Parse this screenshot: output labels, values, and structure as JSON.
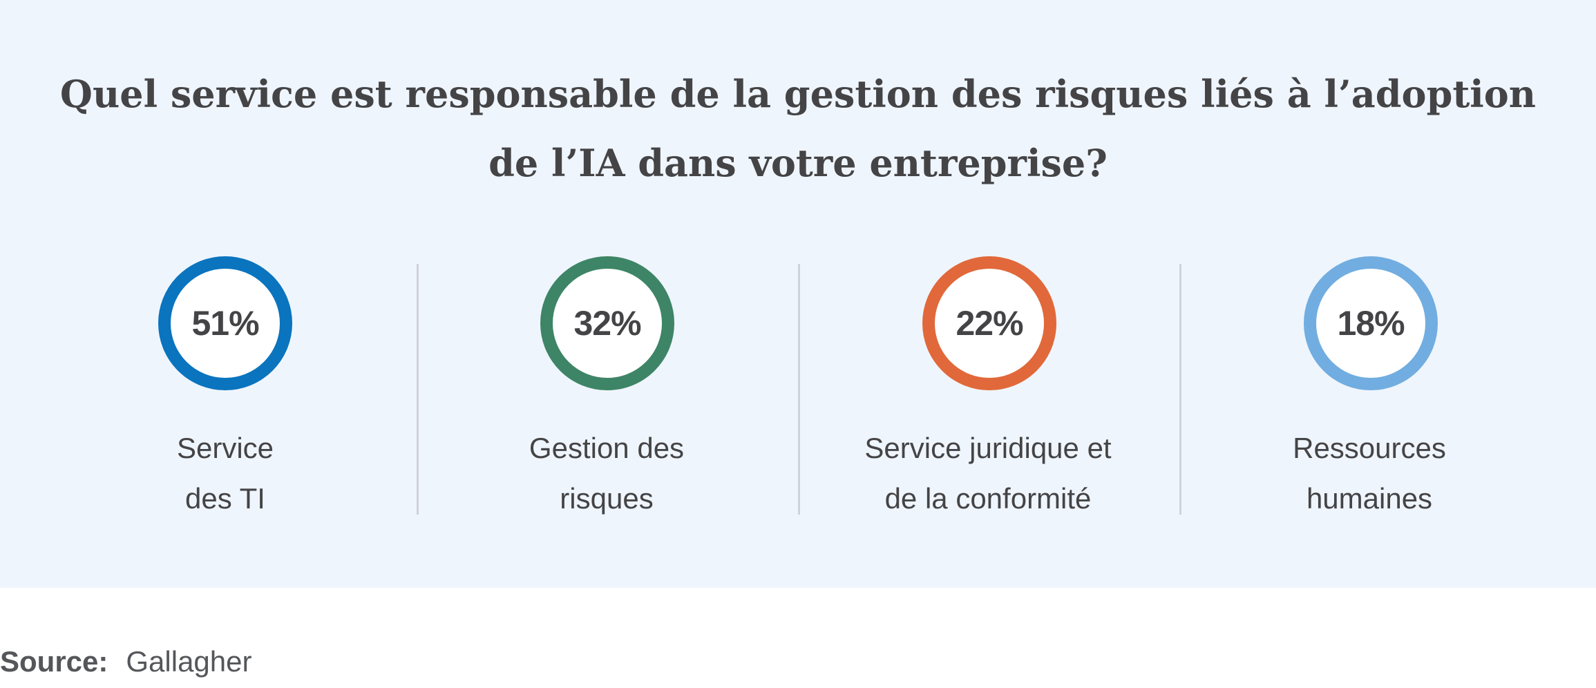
{
  "chart_data": {
    "type": "table",
    "title": "Quel service est responsable de la gestion des risques liés à l’adoption de l’IA dans votre entreprise?",
    "categories": [
      "Service des TI",
      "Gestion des risques",
      "Service juridique et de la conformité",
      "Ressources humaines"
    ],
    "values": [
      51,
      32,
      22,
      18
    ],
    "unit": "%",
    "items": [
      {
        "value": "51%",
        "label_lines": [
          "Service",
          "des TI"
        ],
        "color": "#0a74be"
      },
      {
        "value": "32%",
        "label_lines": [
          "Gestion des",
          "risques"
        ],
        "color": "#3d8566"
      },
      {
        "value": "22%",
        "label_lines": [
          "Service juridique et",
          "de la conformité"
        ],
        "color": "#e1683a"
      },
      {
        "value": "18%",
        "label_lines": [
          "Ressources",
          "humaines"
        ],
        "color": "#71ade0"
      }
    ]
  },
  "source": {
    "label": "Source:",
    "text": "Gallagher"
  },
  "colors": {
    "background_panel": "#eff5fc",
    "text": "#444446",
    "divider": "#cfd3d8"
  }
}
